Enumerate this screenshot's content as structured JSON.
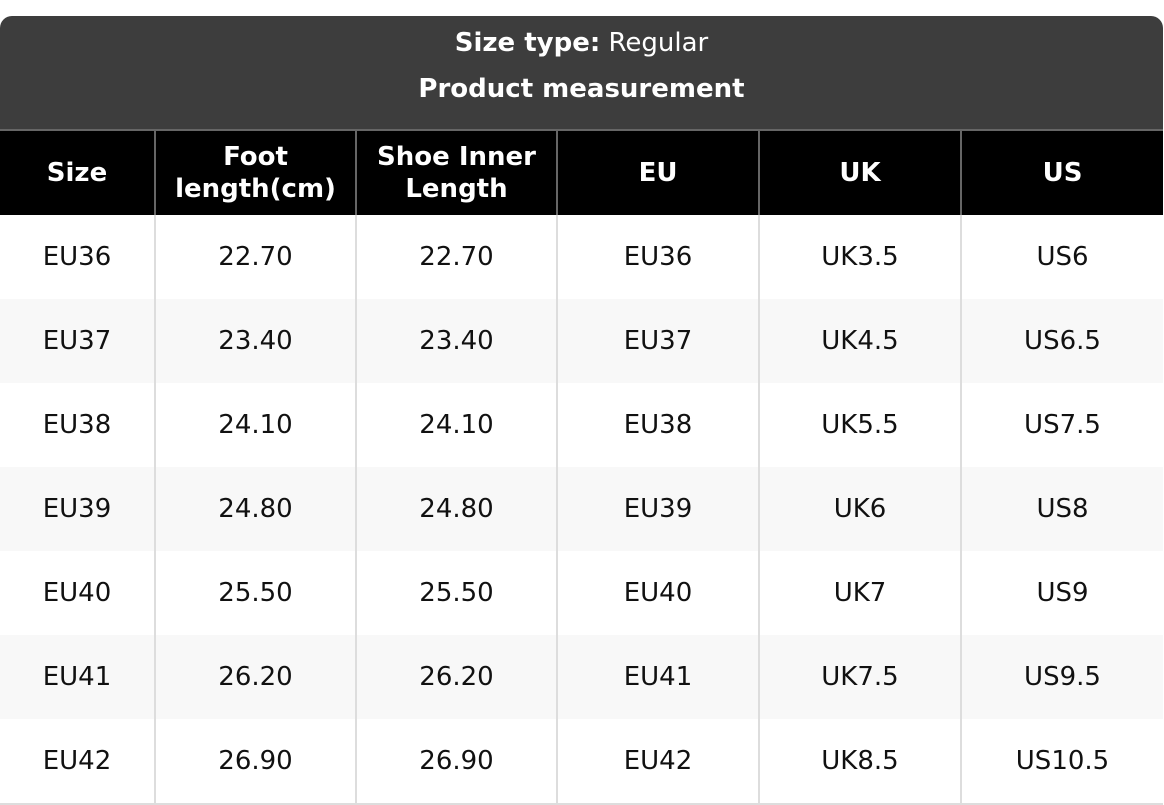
{
  "header": {
    "size_type_label": "Size type:",
    "size_type_value": "Regular",
    "subtitle": "Product measurement"
  },
  "columns": [
    "Size",
    "Foot length(cm)",
    "Shoe Inner Length",
    "EU",
    "UK",
    "US"
  ],
  "rows": [
    [
      "EU36",
      "22.70",
      "22.70",
      "EU36",
      "UK3.5",
      "US6"
    ],
    [
      "EU37",
      "23.40",
      "23.40",
      "EU37",
      "UK4.5",
      "US6.5"
    ],
    [
      "EU38",
      "24.10",
      "24.10",
      "EU38",
      "UK5.5",
      "US7.5"
    ],
    [
      "EU39",
      "24.80",
      "24.80",
      "EU39",
      "UK6",
      "US8"
    ],
    [
      "EU40",
      "25.50",
      "25.50",
      "EU40",
      "UK7",
      "US9"
    ],
    [
      "EU41",
      "26.20",
      "26.20",
      "EU41",
      "UK7.5",
      "US9.5"
    ],
    [
      "EU42",
      "26.90",
      "26.90",
      "EU42",
      "UK8.5",
      "US10.5"
    ]
  ]
}
